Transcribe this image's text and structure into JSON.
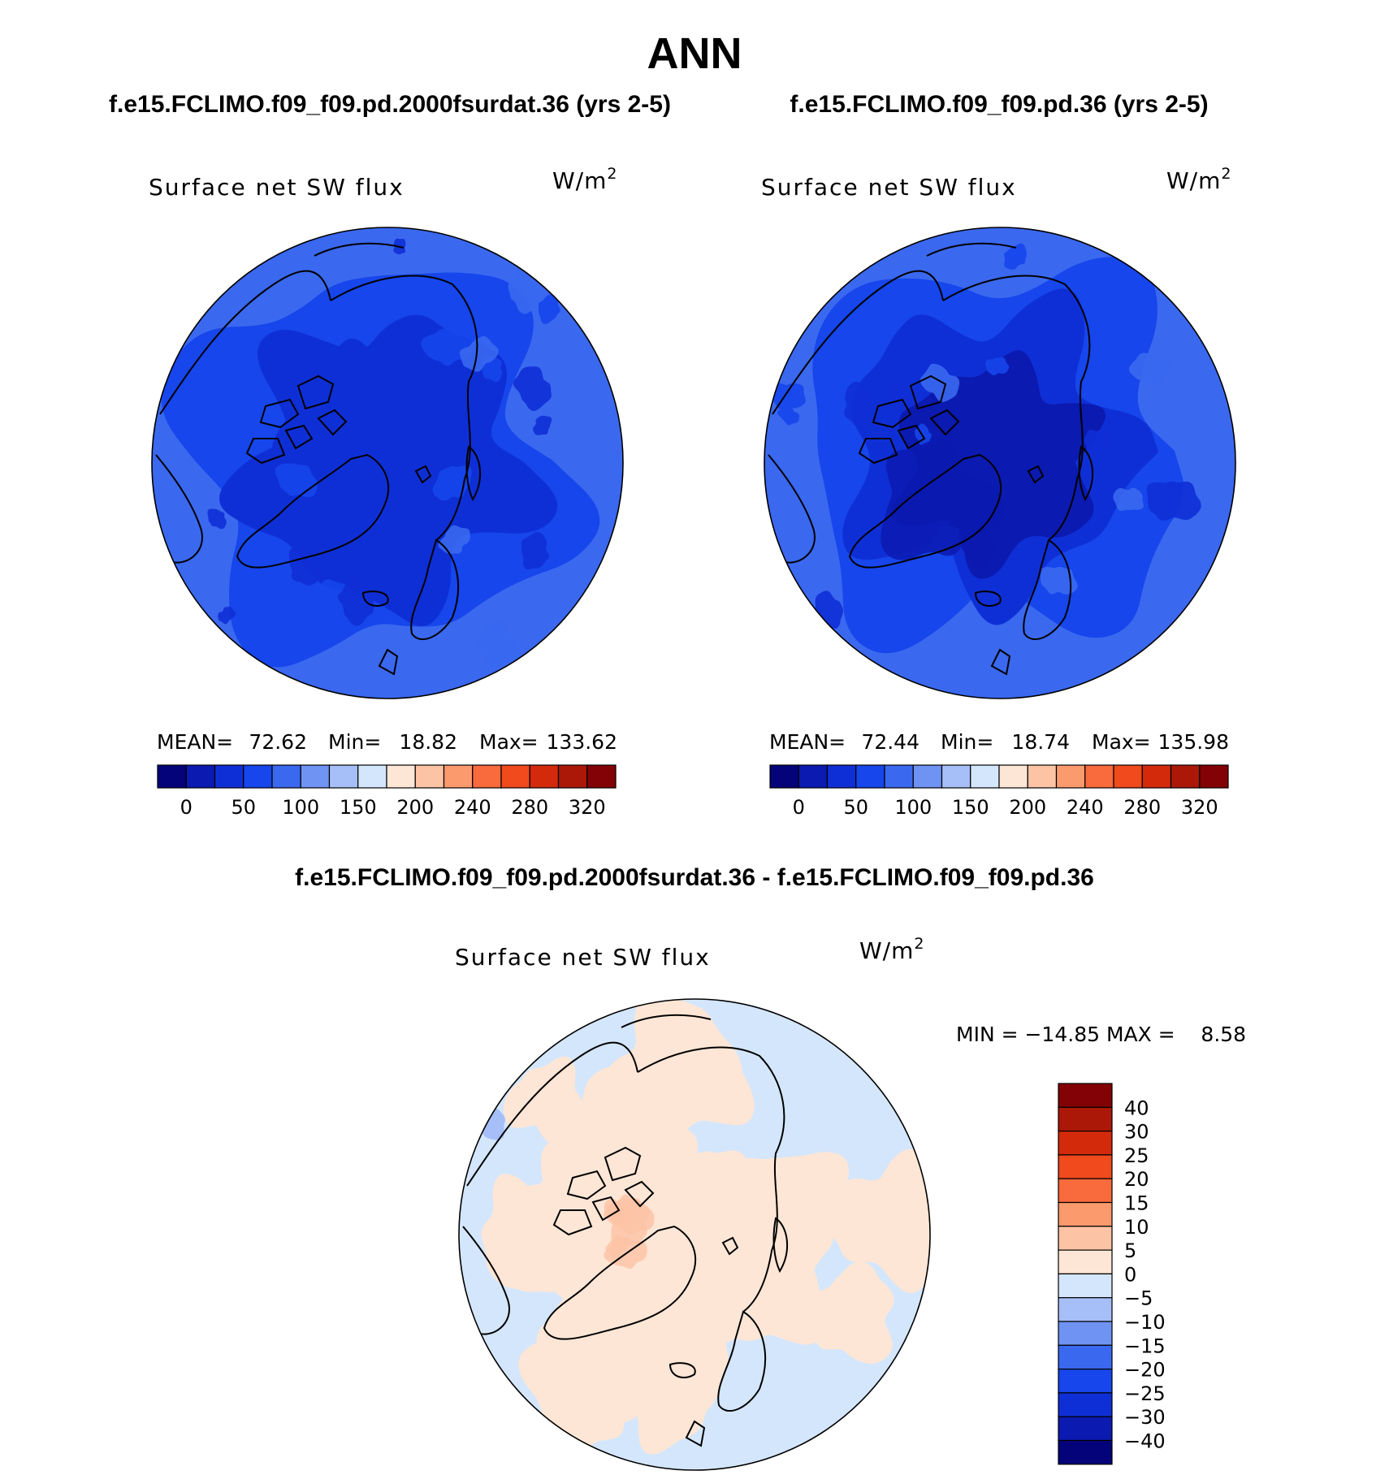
{
  "chart_data": [
    {
      "type": "polar-contour-map",
      "main_title": "ANN",
      "case_title": "f.e15.FCLIMO.f09_f09.pd.2000fsurdat.36 (yrs 2-5)",
      "variable": "Surface net SW flux",
      "units": "W/m",
      "units_superscript": "2",
      "stats": {
        "mean_label": "MEAN=",
        "mean": "72.62",
        "min_label": "Min=",
        "min": "18.82",
        "max_label": "Max=",
        "max": "133.62"
      },
      "colorbar": {
        "tick_labels": [
          "0",
          "50",
          "100",
          "150",
          "200",
          "240",
          "280",
          "320"
        ],
        "colors": [
          "#04037a",
          "#0b1ab0",
          "#0f2fd6",
          "#1646ec",
          "#3a68ef",
          "#6f93f3",
          "#a6bff8",
          "#d4e6fb",
          "#fde6d6",
          "#fcc3a5",
          "#fb9a6c",
          "#f96a3c",
          "#f04a1d",
          "#d42a0c",
          "#ac1808",
          "#820205"
        ]
      },
      "field_description_levels": [
        "#0f2fd6",
        "#1646ec",
        "#3a68ef",
        "#6f93f3"
      ]
    },
    {
      "type": "polar-contour-map",
      "case_title": "f.e15.FCLIMO.f09_f09.pd.36 (yrs 2-5)",
      "variable": "Surface net SW flux",
      "units": "W/m",
      "units_superscript": "2",
      "stats": {
        "mean_label": "MEAN=",
        "mean": "72.44",
        "min_label": "Min=",
        "min": "18.74",
        "max_label": "Max=",
        "max": "135.98"
      },
      "colorbar": {
        "tick_labels": [
          "0",
          "50",
          "100",
          "150",
          "200",
          "240",
          "280",
          "320"
        ],
        "colors": [
          "#04037a",
          "#0b1ab0",
          "#0f2fd6",
          "#1646ec",
          "#3a68ef",
          "#6f93f3",
          "#a6bff8",
          "#d4e6fb",
          "#fde6d6",
          "#fcc3a5",
          "#fb9a6c",
          "#f96a3c",
          "#f04a1d",
          "#d42a0c",
          "#ac1808",
          "#820205"
        ]
      }
    },
    {
      "type": "polar-contour-map-difference",
      "diff_title": "f.e15.FCLIMO.f09_f09.pd.2000fsurdat.36 - f.e15.FCLIMO.f09_f09.pd.36",
      "variable": "Surface net SW flux",
      "units": "W/m",
      "units_superscript": "2",
      "minmax_text": "MIN = −14.85 MAX =    8.58",
      "min": -14.85,
      "max": 8.58,
      "colorbar": {
        "tick_labels": [
          "40",
          "30",
          "25",
          "20",
          "15",
          "10",
          "5",
          "0",
          "−5",
          "−10",
          "−15",
          "−20",
          "−25",
          "−30",
          "−40"
        ],
        "colors": [
          "#820205",
          "#ac1808",
          "#d42a0c",
          "#f04a1d",
          "#f96a3c",
          "#fb9a6c",
          "#fcc3a5",
          "#fde6d6",
          "#d4e6fb",
          "#a6bff8",
          "#6f93f3",
          "#3a68ef",
          "#1646ec",
          "#0f2fd6",
          "#0b1ab0",
          "#04037a"
        ]
      }
    }
  ]
}
